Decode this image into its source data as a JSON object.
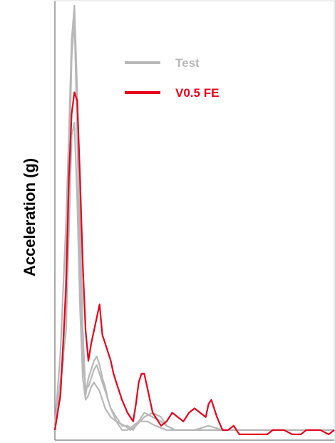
{
  "chart_data": {
    "type": "line",
    "ylabel": "Acceleration (g)",
    "xlabel": "",
    "title": "",
    "grid": false,
    "legend_position": "top-right",
    "xlim": [
      0,
      100
    ],
    "ylim": [
      0,
      100
    ],
    "series": [
      {
        "name": "Test",
        "color": "#b8b8b8",
        "x": [
          0,
          2,
          4,
          5,
          6,
          7,
          8,
          9,
          10,
          11,
          12,
          13,
          14,
          15,
          16,
          17,
          18,
          19,
          20,
          22,
          24,
          26,
          28,
          30,
          32,
          35,
          38,
          40,
          43,
          46,
          50,
          55,
          60,
          65,
          70,
          75,
          80,
          90,
          100
        ],
        "values": [
          3,
          20,
          50,
          70,
          92,
          100,
          80,
          50,
          25,
          10,
          14,
          16,
          18,
          19,
          17,
          14,
          12,
          9,
          7,
          5,
          3,
          3,
          2,
          4,
          6,
          5,
          4,
          3,
          2,
          2,
          2,
          2,
          2,
          2,
          2,
          2,
          2,
          2,
          2
        ]
      },
      {
        "name": "Test",
        "color": "#b8b8b8",
        "x": [
          0,
          3,
          5,
          6,
          7,
          8,
          9,
          10,
          11,
          12,
          13,
          14,
          15,
          16,
          17,
          18,
          19,
          20,
          22,
          25,
          27,
          29,
          32,
          35,
          38,
          40,
          43,
          46,
          50,
          55,
          60,
          70,
          80,
          90,
          100
        ],
        "values": [
          2,
          18,
          60,
          88,
          97,
          70,
          40,
          18,
          12,
          12,
          14,
          16,
          17,
          15,
          13,
          11,
          9,
          7,
          4,
          3,
          2,
          3,
          5,
          6,
          5,
          3,
          2,
          2,
          2,
          3,
          2,
          2,
          2,
          2,
          2
        ]
      },
      {
        "name": "Test",
        "color": "#b8b8b8",
        "x": [
          0,
          4,
          6,
          7,
          8,
          9,
          10,
          11,
          12,
          13,
          14,
          15,
          16,
          17,
          18,
          20,
          22,
          24,
          26,
          28,
          30,
          33,
          36,
          40,
          44,
          50,
          60,
          70,
          80,
          90,
          100
        ],
        "values": [
          2,
          25,
          70,
          73,
          55,
          30,
          14,
          9,
          10,
          12,
          13,
          12,
          11,
          9,
          7,
          5,
          4,
          2,
          2,
          3,
          4,
          4,
          3,
          2,
          2,
          2,
          2,
          2,
          2,
          2,
          2
        ]
      },
      {
        "name": "V0.5 FE",
        "color": "#e8001c",
        "x": [
          0,
          2,
          4,
          5,
          6,
          7,
          8,
          9,
          10,
          11,
          12,
          13,
          14,
          15,
          16,
          17,
          18,
          19,
          20,
          21,
          22,
          24,
          26,
          28,
          29,
          30,
          31,
          32,
          33,
          34,
          35,
          36,
          38,
          40,
          42,
          44,
          46,
          48,
          50,
          52,
          54,
          55,
          56,
          58,
          60,
          62,
          64,
          66,
          67,
          68,
          70,
          72,
          74,
          76,
          78,
          80,
          82,
          85,
          88,
          90,
          92,
          95,
          98,
          100
        ],
        "values": [
          2,
          10,
          35,
          60,
          75,
          80,
          78,
          60,
          40,
          25,
          18,
          22,
          25,
          28,
          31,
          24,
          22,
          20,
          18,
          15,
          13,
          9,
          6,
          4,
          8,
          13,
          15,
          15,
          12,
          9,
          6,
          5,
          3,
          4,
          6,
          5,
          4,
          6,
          7,
          6,
          5,
          8,
          9,
          5,
          2,
          2,
          3,
          1,
          1,
          1,
          1,
          1,
          1,
          1,
          2,
          2,
          2,
          1,
          1,
          2,
          2,
          2,
          1,
          2
        ]
      }
    ]
  }
}
